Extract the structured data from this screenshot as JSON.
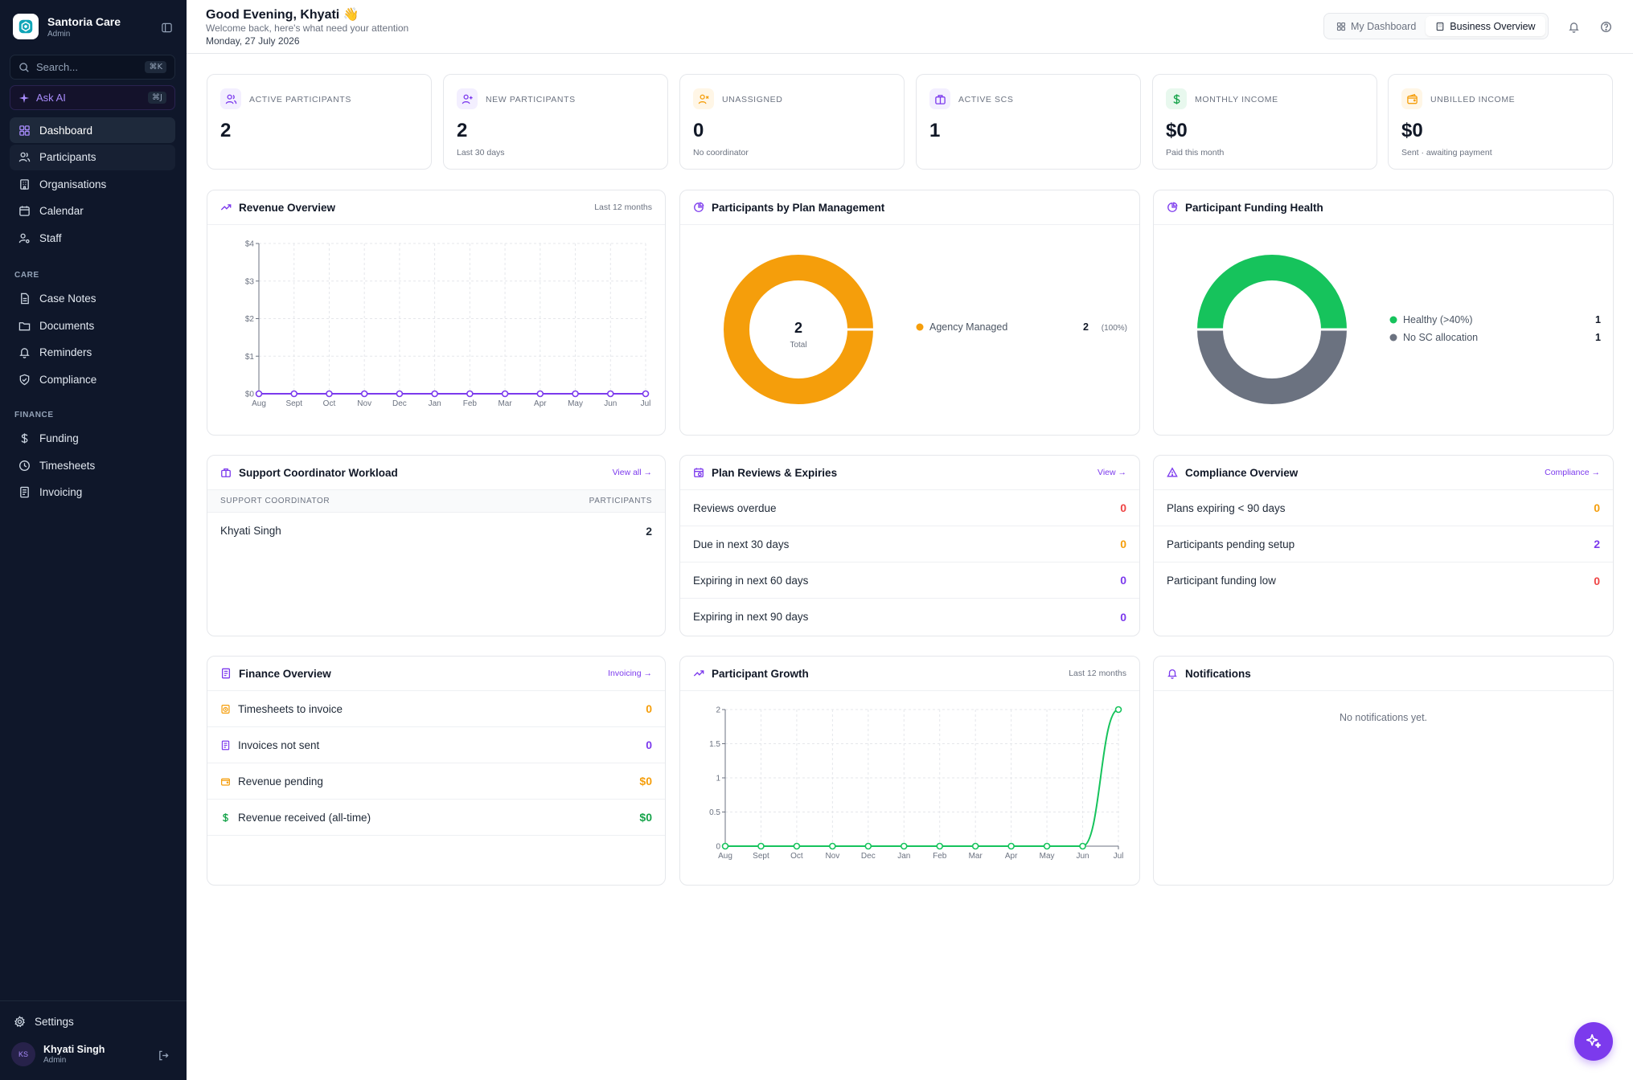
{
  "brand": {
    "name": "Santoria Care",
    "role": "Admin"
  },
  "search": {
    "placeholder": "Search...",
    "shortcut": "⌘K"
  },
  "ask_ai": {
    "label": "Ask AI",
    "shortcut": "⌘J"
  },
  "nav": {
    "main": [
      {
        "label": "Dashboard",
        "icon": "grid-icon"
      },
      {
        "label": "Participants",
        "icon": "users-icon"
      },
      {
        "label": "Organisations",
        "icon": "building-icon"
      },
      {
        "label": "Calendar",
        "icon": "calendar-icon"
      },
      {
        "label": "Staff",
        "icon": "user-cog-icon"
      }
    ],
    "care_label": "CARE",
    "care": [
      {
        "label": "Case Notes",
        "icon": "file-text-icon"
      },
      {
        "label": "Documents",
        "icon": "folder-icon"
      },
      {
        "label": "Reminders",
        "icon": "bell-icon"
      },
      {
        "label": "Compliance",
        "icon": "shield-check-icon"
      }
    ],
    "finance_label": "FINANCE",
    "finance": [
      {
        "label": "Funding",
        "icon": "dollar-icon"
      },
      {
        "label": "Timesheets",
        "icon": "clock-icon"
      },
      {
        "label": "Invoicing",
        "icon": "receipt-icon"
      }
    ],
    "settings": "Settings"
  },
  "user": {
    "initials": "KS",
    "name": "Khyati Singh",
    "role": "Admin"
  },
  "header": {
    "greeting": "Good Evening, Khyati 👋",
    "subtitle": "Welcome back, here's what need your attention",
    "date": "Monday, 27 July 2026",
    "tabs": [
      "My Dashboard",
      "Business Overview"
    ],
    "active_tab": "Business Overview"
  },
  "stats": [
    {
      "label": "ACTIVE PARTICIPANTS",
      "value": "2",
      "sub": "",
      "color": "#7c3aed",
      "bg": "#f3efff"
    },
    {
      "label": "NEW PARTICIPANTS",
      "value": "2",
      "sub": "Last 30 days",
      "color": "#7c3aed",
      "bg": "#f3efff"
    },
    {
      "label": "UNASSIGNED",
      "value": "0",
      "sub": "No coordinator",
      "color": "#f59e0b",
      "bg": "#fff6e6"
    },
    {
      "label": "ACTIVE SCS",
      "value": "1",
      "sub": "",
      "color": "#7c3aed",
      "bg": "#f3efff"
    },
    {
      "label": "MONTHLY INCOME",
      "value": "$0",
      "sub": "Paid this month",
      "color": "#16a34a",
      "bg": "#e8f8ee"
    },
    {
      "label": "UNBILLED INCOME",
      "value": "$0",
      "sub": "Sent · awaiting payment",
      "color": "#f59e0b",
      "bg": "#fff6e6"
    }
  ],
  "revenue": {
    "title": "Revenue Overview",
    "range": "Last 12 months",
    "chart_data": {
      "type": "line",
      "categories": [
        "Aug",
        "Sept",
        "Oct",
        "Nov",
        "Dec",
        "Jan",
        "Feb",
        "Mar",
        "Apr",
        "May",
        "Jun",
        "Jul"
      ],
      "values": [
        0,
        0,
        0,
        0,
        0,
        0,
        0,
        0,
        0,
        0,
        0,
        0
      ],
      "yticks": [
        "$0",
        "$1",
        "$2",
        "$3",
        "$4"
      ],
      "ylim": [
        0,
        4
      ],
      "grid": true,
      "color": "#7c3aed"
    }
  },
  "plan_mgmt": {
    "title": "Participants by Plan Management",
    "center_value": "2",
    "center_label": "Total",
    "chart_data": {
      "type": "pie",
      "slices": [
        {
          "name": "Agency Managed",
          "value": 2,
          "percent": "(100%)",
          "color": "#f59e0b"
        }
      ]
    }
  },
  "funding_health": {
    "title": "Participant Funding Health",
    "chart_data": {
      "type": "pie",
      "slices": [
        {
          "name": "Healthy (>40%)",
          "value": 1,
          "color": "#16c35c"
        },
        {
          "name": "No SC allocation",
          "value": 1,
          "color": "#6b7280"
        }
      ]
    }
  },
  "workload": {
    "title": "Support Coordinator Workload",
    "link": "View all →",
    "columns": [
      "SUPPORT COORDINATOR",
      "PARTICIPANTS"
    ],
    "rows": [
      {
        "name": "Khyati Singh",
        "count": "2"
      }
    ]
  },
  "plan_reviews": {
    "title": "Plan Reviews & Expiries",
    "link": "View →",
    "rows": [
      {
        "label": "Reviews overdue",
        "value": "0",
        "tone": "red"
      },
      {
        "label": "Due in next 30 days",
        "value": "0",
        "tone": "amber"
      },
      {
        "label": "Expiring in next 60 days",
        "value": "0",
        "tone": "purple"
      },
      {
        "label": "Expiring in next 90 days",
        "value": "0",
        "tone": "purple"
      }
    ]
  },
  "compliance": {
    "title": "Compliance Overview",
    "link": "Compliance →",
    "rows": [
      {
        "label": "Plans expiring < 90 days",
        "value": "0",
        "tone": "amber"
      },
      {
        "label": "Participants pending setup",
        "value": "2",
        "tone": "purple"
      },
      {
        "label": "Participant funding low",
        "value": "0",
        "tone": "red"
      }
    ]
  },
  "finance": {
    "title": "Finance Overview",
    "link": "Invoicing →",
    "rows": [
      {
        "label": "Timesheets to invoice",
        "value": "0",
        "tone": "amber",
        "icon": "timesheet-icon"
      },
      {
        "label": "Invoices not sent",
        "value": "0",
        "tone": "purple",
        "icon": "invoice-icon"
      },
      {
        "label": "Revenue pending",
        "value": "$0",
        "tone": "amber",
        "icon": "wallet-icon"
      },
      {
        "label": "Revenue received (all-time)",
        "value": "$0",
        "tone": "green",
        "icon": "dollar-icon"
      }
    ]
  },
  "growth": {
    "title": "Participant Growth",
    "range": "Last 12 months",
    "chart_data": {
      "type": "line",
      "categories": [
        "Aug",
        "Sept",
        "Oct",
        "Nov",
        "Dec",
        "Jan",
        "Feb",
        "Mar",
        "Apr",
        "May",
        "Jun",
        "Jul"
      ],
      "values": [
        0,
        0,
        0,
        0,
        0,
        0,
        0,
        0,
        0,
        0,
        0,
        2
      ],
      "yticks": [
        "0",
        "0.5",
        "1",
        "1.5",
        "2"
      ],
      "ylim": [
        0,
        2
      ],
      "grid": true,
      "color": "#16c35c"
    }
  },
  "notifications": {
    "title": "Notifications",
    "empty": "No notifications yet."
  }
}
